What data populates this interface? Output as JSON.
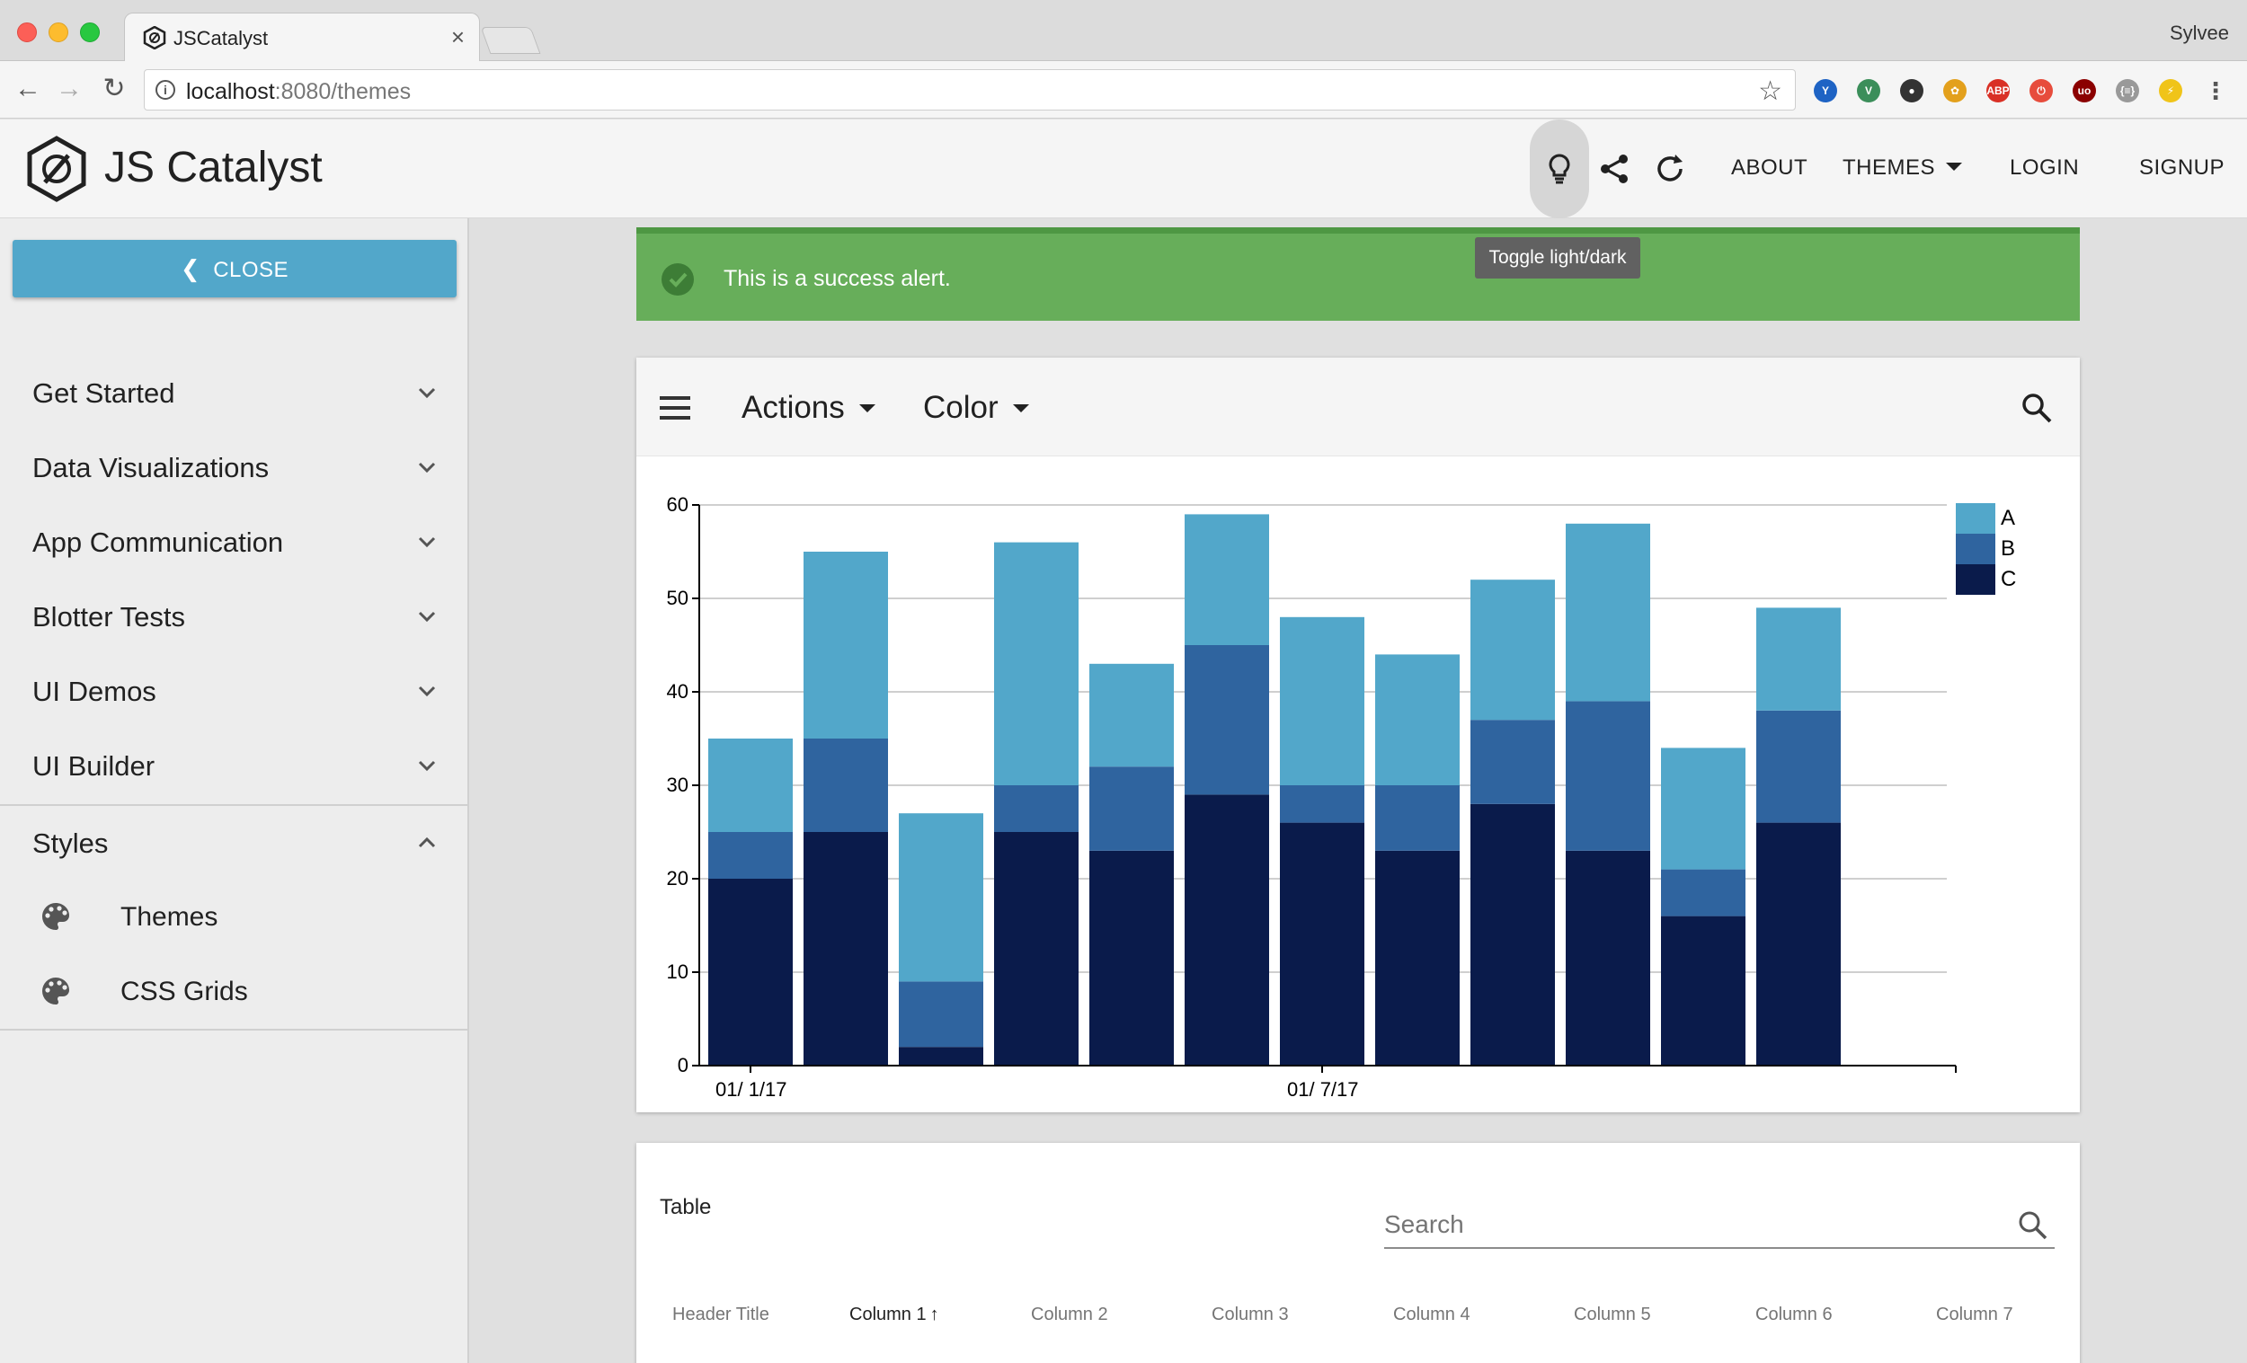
{
  "browser": {
    "tab_title": "JSCatalyst",
    "tab_close": "×",
    "profile_name": "Sylvee",
    "url_host": "localhost",
    "url_rest": ":8080/themes",
    "back_icon": "←",
    "forward_icon": "→",
    "reload_icon": "↻",
    "star_icon": "☆"
  },
  "header": {
    "title": "JS Catalyst",
    "links": {
      "about": "ABOUT",
      "themes": "THEMES",
      "login": "LOGIN",
      "signup": "SIGNUP"
    },
    "tooltip": "Toggle light/dark"
  },
  "sidebar": {
    "close_label": "CLOSE",
    "items": [
      {
        "label": "Get Started"
      },
      {
        "label": "Data Visualizations"
      },
      {
        "label": "App Communication"
      },
      {
        "label": "Blotter Tests"
      },
      {
        "label": "UI Demos"
      },
      {
        "label": "UI Builder"
      },
      {
        "label": "Styles"
      }
    ],
    "sub_items": [
      {
        "label": "Themes"
      },
      {
        "label": "CSS Grids"
      }
    ]
  },
  "alert": {
    "text": "This is a success alert."
  },
  "card": {
    "menus": {
      "actions": "Actions",
      "color": "Color"
    }
  },
  "chart_data": {
    "type": "bar",
    "stacked": true,
    "categories": [
      "01/ 1/17",
      "",
      "",
      "",
      "",
      "",
      "01/ 7/17",
      "",
      "",
      "",
      "",
      "",
      ""
    ],
    "series": [
      {
        "name": "C",
        "color": "#0a1b4b",
        "values": [
          20,
          25,
          2,
          25,
          23,
          29,
          26,
          23,
          28,
          23,
          16,
          26,
          0
        ]
      },
      {
        "name": "B",
        "color": "#2f649f",
        "values": [
          5,
          10,
          7,
          5,
          9,
          16,
          4,
          7,
          9,
          16,
          5,
          12,
          0
        ]
      },
      {
        "name": "A",
        "color": "#52a7ca",
        "values": [
          10,
          20,
          18,
          26,
          11,
          14,
          18,
          14,
          15,
          19,
          13,
          11,
          0
        ]
      }
    ],
    "y_ticks": [
      0,
      10,
      20,
      30,
      40,
      50,
      60
    ],
    "ylim": [
      0,
      60
    ],
    "grid": true,
    "legend_position": "top-right"
  },
  "table": {
    "title": "Table",
    "search_placeholder": "Search",
    "columns": [
      "Header Title",
      "Column 1",
      "Column 2",
      "Column 3",
      "Column 4",
      "Column 5",
      "Column 6",
      "Column 7"
    ],
    "sort_arrow": "↑"
  }
}
